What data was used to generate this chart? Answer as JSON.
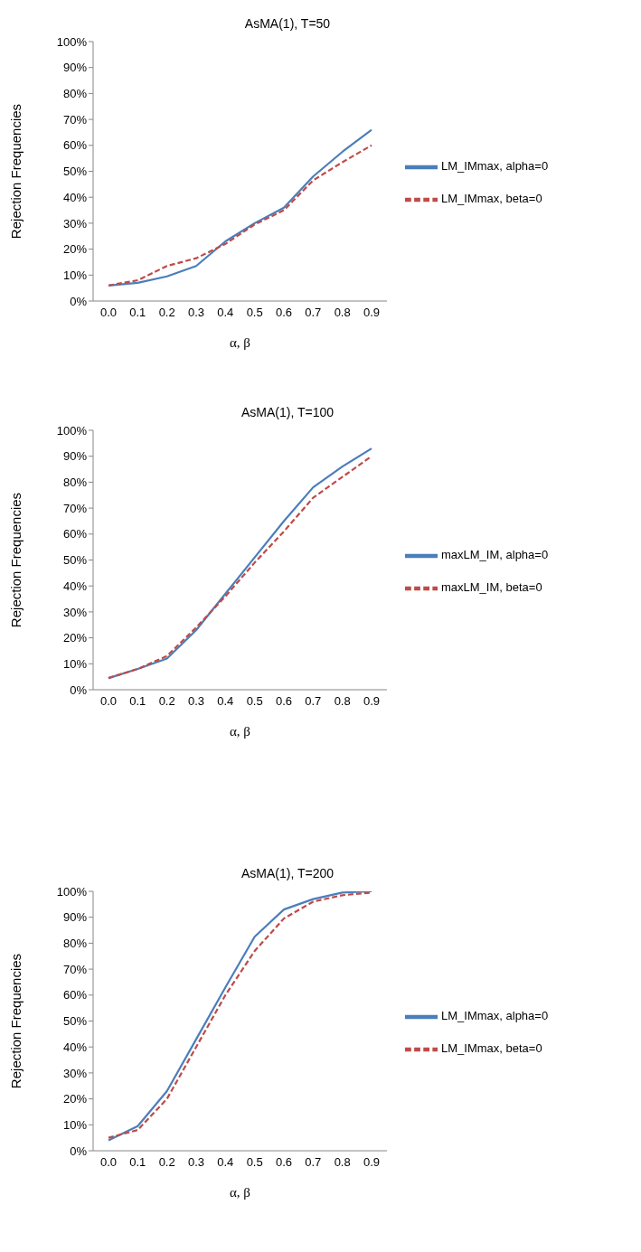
{
  "chart_data": [
    {
      "type": "line",
      "title": "AsMA(1), T=50",
      "xlabel": "α, β",
      "ylabel": "Rejection Frequencies",
      "categories": [
        "0.0",
        "0.1",
        "0.2",
        "0.3",
        "0.4",
        "0.5",
        "0.6",
        "0.7",
        "0.8",
        "0.9"
      ],
      "ylim": [
        0,
        100
      ],
      "yticks": [
        {
          "value": 0,
          "label": "0%"
        },
        {
          "value": 10,
          "label": "10%"
        },
        {
          "value": 20,
          "label": "20%"
        },
        {
          "value": 30,
          "label": "30%"
        },
        {
          "value": 40,
          "label": "40%"
        },
        {
          "value": 50,
          "label": "50%"
        },
        {
          "value": 60,
          "label": "60%"
        },
        {
          "value": 70,
          "label": "70%"
        },
        {
          "value": 80,
          "label": "80%"
        },
        {
          "value": 90,
          "label": "90%"
        },
        {
          "value": 100,
          "label": "100%"
        }
      ],
      "grid": false,
      "legend": "right",
      "marker": "none",
      "series": [
        {
          "name": "LM_IMmax, alpha=0",
          "color": "#4a7ebb",
          "line_style": "solid",
          "values": [
            6,
            7,
            9.5,
            13.5,
            23,
            30,
            36,
            48,
            57.5,
            66
          ]
        },
        {
          "name": "LM_IMmax, beta=0",
          "color": "#be4b48",
          "line_style": "dashed",
          "values": [
            6,
            8,
            13.5,
            16.5,
            22,
            29.5,
            35,
            46.5,
            53.5,
            60
          ]
        }
      ]
    },
    {
      "type": "line",
      "title": "AsMA(1), T=100",
      "xlabel": "α, β",
      "ylabel": "Rejection Frequencies",
      "categories": [
        "0.0",
        "0.1",
        "0.2",
        "0.3",
        "0.4",
        "0.5",
        "0.6",
        "0.7",
        "0.8",
        "0.9"
      ],
      "ylim": [
        0,
        100
      ],
      "yticks": [
        {
          "value": 0,
          "label": "0%"
        },
        {
          "value": 10,
          "label": "10%"
        },
        {
          "value": 20,
          "label": "20%"
        },
        {
          "value": 30,
          "label": "30%"
        },
        {
          "value": 40,
          "label": "40%"
        },
        {
          "value": 50,
          "label": "50%"
        },
        {
          "value": 60,
          "label": "60%"
        },
        {
          "value": 70,
          "label": "70%"
        },
        {
          "value": 80,
          "label": "80%"
        },
        {
          "value": 90,
          "label": "90%"
        },
        {
          "value": 100,
          "label": "100%"
        }
      ],
      "grid": false,
      "legend": "right",
      "marker": "none",
      "series": [
        {
          "name": "maxLM_IM, alpha=0",
          "color": "#4a7ebb",
          "line_style": "solid",
          "values": [
            4.5,
            8,
            12,
            23,
            37,
            51,
            65,
            78,
            86,
            93
          ]
        },
        {
          "name": "maxLM_IM, beta=0",
          "color": "#be4b48",
          "line_style": "dashed",
          "values": [
            4.5,
            8,
            13,
            24,
            36,
            49,
            61,
            74,
            82,
            90
          ]
        }
      ]
    },
    {
      "type": "line",
      "title": "AsMA(1), T=200",
      "xlabel": "α, β",
      "ylabel": "Rejection Frequencies",
      "categories": [
        "0.0",
        "0.1",
        "0.2",
        "0.3",
        "0.4",
        "0.5",
        "0.6",
        "0.7",
        "0.8",
        "0.9"
      ],
      "ylim": [
        0,
        100
      ],
      "yticks": [
        {
          "value": 0,
          "label": "0%"
        },
        {
          "value": 10,
          "label": "10%"
        },
        {
          "value": 20,
          "label": "20%"
        },
        {
          "value": 30,
          "label": "30%"
        },
        {
          "value": 40,
          "label": "40%"
        },
        {
          "value": 50,
          "label": "50%"
        },
        {
          "value": 60,
          "label": "60%"
        },
        {
          "value": 70,
          "label": "70%"
        },
        {
          "value": 80,
          "label": "80%"
        },
        {
          "value": 90,
          "label": "90%"
        },
        {
          "value": 100,
          "label": "100%"
        }
      ],
      "grid": false,
      "legend": "right",
      "marker": "none",
      "series": [
        {
          "name": "LM_IMmax, alpha=0",
          "color": "#4a7ebb",
          "line_style": "solid",
          "values": [
            4,
            9.5,
            23,
            43,
            63,
            82.5,
            93,
            97,
            99.5,
            100
          ]
        },
        {
          "name": "LM_IMmax, beta=0",
          "color": "#be4b48",
          "line_style": "dashed",
          "values": [
            5,
            8,
            20,
            40,
            60,
            77,
            89.5,
            96,
            98.5,
            99.5
          ]
        }
      ]
    }
  ]
}
